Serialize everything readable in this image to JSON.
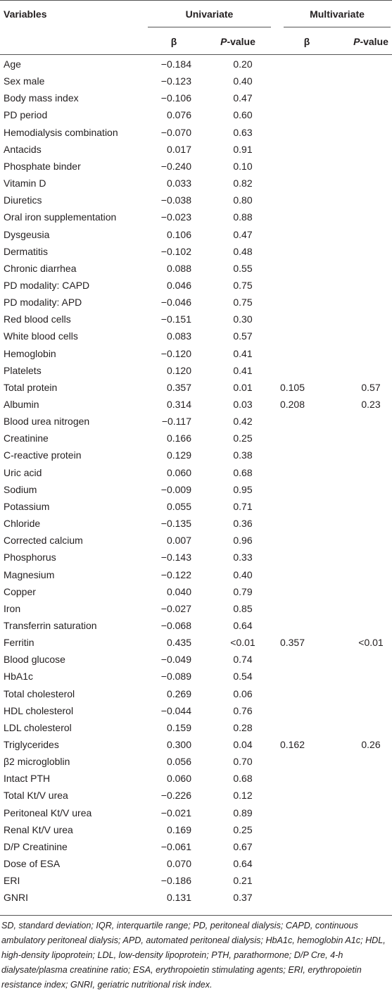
{
  "table": {
    "header": {
      "variables": "Variables",
      "univariate": "Univariate",
      "multivariate": "Multivariate",
      "beta": "β",
      "p_italic": "P",
      "p_rest": "-value"
    },
    "rows": [
      [
        "Age",
        "−0.184",
        "0.20"
      ],
      [
        "Sex male",
        "−0.123",
        "0.40"
      ],
      [
        "Body mass index",
        "−0.106",
        "0.47"
      ],
      [
        "PD period",
        "0.076",
        "0.60"
      ],
      [
        "Hemodialysis combination",
        "−0.070",
        "0.63"
      ],
      [
        "Antacids",
        "0.017",
        "0.91"
      ],
      [
        "Phosphate binder",
        "−0.240",
        "0.10"
      ],
      [
        "Vitamin D",
        "0.033",
        "0.82"
      ],
      [
        "Diuretics",
        "−0.038",
        "0.80"
      ],
      [
        "Oral iron supplementation",
        "−0.023",
        "0.88"
      ],
      [
        "Dysgeusia",
        "0.106",
        "0.47"
      ],
      [
        "Dermatitis",
        "−0.102",
        "0.48"
      ],
      [
        "Chronic diarrhea",
        "0.088",
        "0.55"
      ],
      [
        "PD modality: CAPD",
        "0.046",
        "0.75"
      ],
      [
        "PD modality: APD",
        "−0.046",
        "0.75"
      ],
      [
        "Red blood cells",
        "−0.151",
        "0.30"
      ],
      [
        "White blood cells",
        "0.083",
        "0.57"
      ],
      [
        "Hemoglobin",
        "−0.120",
        "0.41"
      ],
      [
        "Platelets",
        "0.120",
        "0.41"
      ],
      [
        "Total protein",
        "0.357",
        "0.01",
        "0.105",
        "0.57"
      ],
      [
        "Albumin",
        "0.314",
        "0.03",
        "0.208",
        "0.23"
      ],
      [
        "Blood urea nitrogen",
        "−0.117",
        "0.42"
      ],
      [
        "Creatinine",
        "0.166",
        "0.25"
      ],
      [
        "C-reactive protein",
        "0.129",
        "0.38"
      ],
      [
        "Uric acid",
        "0.060",
        "0.68"
      ],
      [
        "Sodium",
        "−0.009",
        "0.95"
      ],
      [
        "Potassium",
        "0.055",
        "0.71"
      ],
      [
        "Chloride",
        "−0.135",
        "0.36"
      ],
      [
        "Corrected calcium",
        "0.007",
        "0.96"
      ],
      [
        "Phosphorus",
        "−0.143",
        "0.33"
      ],
      [
        "Magnesium",
        "−0.122",
        "0.40"
      ],
      [
        "Copper",
        "0.040",
        "0.79"
      ],
      [
        "Iron",
        "−0.027",
        "0.85"
      ],
      [
        "Transferrin saturation",
        "−0.068",
        "0.64"
      ],
      [
        "Ferritin",
        "0.435",
        "<0.01",
        "0.357",
        "<0.01"
      ],
      [
        "Blood glucose",
        "−0.049",
        "0.74"
      ],
      [
        "HbA1c",
        "−0.089",
        "0.54"
      ],
      [
        "Total cholesterol",
        "0.269",
        "0.06"
      ],
      [
        "HDL cholesterol",
        "−0.044",
        "0.76"
      ],
      [
        "LDL cholesterol",
        "0.159",
        "0.28"
      ],
      [
        "Triglycerides",
        "0.300",
        "0.04",
        "0.162",
        "0.26"
      ],
      [
        "β2 microgloblin",
        "0.056",
        "0.70"
      ],
      [
        "Intact PTH",
        "0.060",
        "0.68"
      ],
      [
        "Total Kt/V urea",
        "−0.226",
        "0.12"
      ],
      [
        "Peritoneal Kt/V urea",
        "−0.021",
        "0.89"
      ],
      [
        "Renal Kt/V urea",
        "0.169",
        "0.25"
      ],
      [
        "D/P Creatinine",
        "−0.061",
        "0.67"
      ],
      [
        "Dose of ESA",
        "0.070",
        "0.64"
      ],
      [
        "ERI",
        "−0.186",
        "0.21"
      ],
      [
        "GNRI",
        "0.131",
        "0.37"
      ]
    ]
  },
  "footnote": "SD, standard deviation; IQR, interquartile range; PD, peritoneal dialysis; CAPD, continuous ambulatory peritoneal dialysis; APD, automated peritoneal dialysis; HbA1c, hemoglobin A1c; HDL, high-density lipoprotein; LDL, low-density lipoprotein; PTH, parathormone; D/P Cre, 4-h dialysate/plasma creatinine ratio; ESA, erythropoietin stimulating agents; ERI, erythropoietin resistance index; GNRI, geriatric nutritional risk index."
}
